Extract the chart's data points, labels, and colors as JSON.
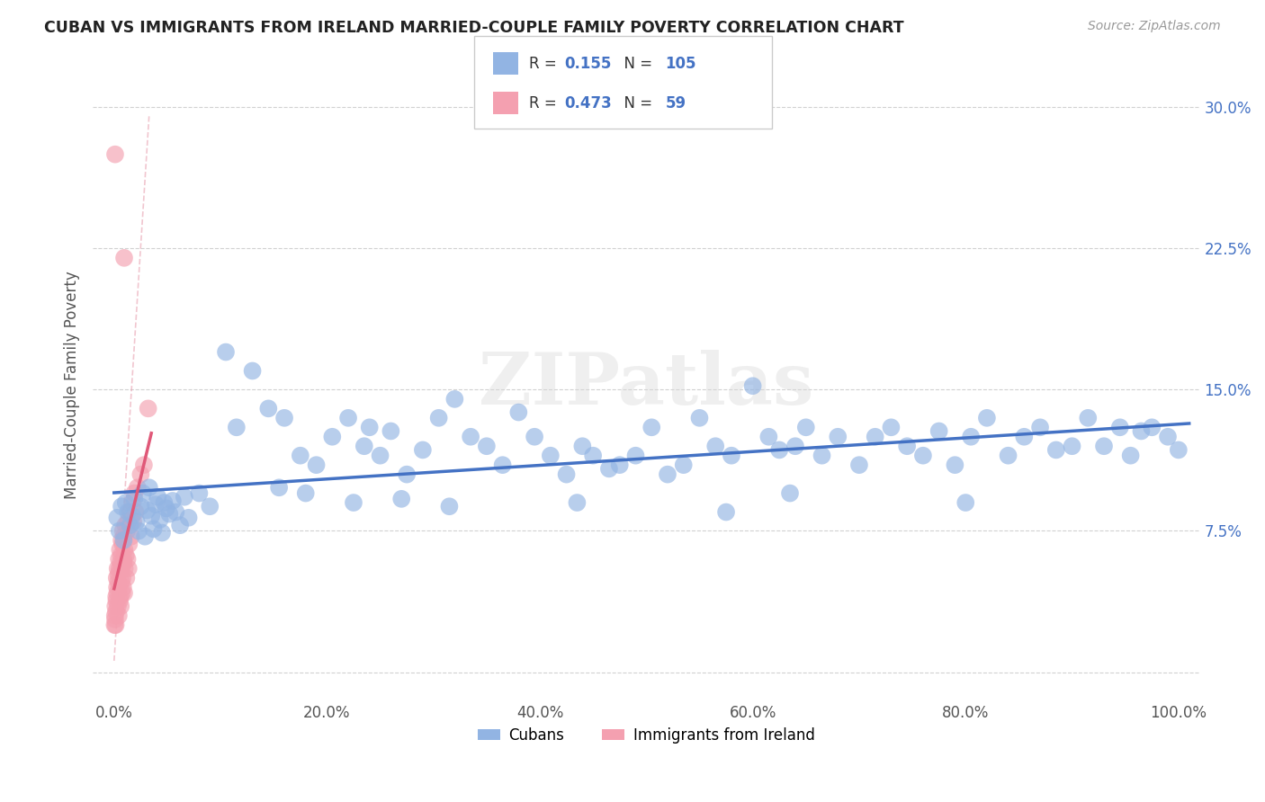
{
  "title": "CUBAN VS IMMIGRANTS FROM IRELAND MARRIED-COUPLE FAMILY POVERTY CORRELATION CHART",
  "source": "Source: ZipAtlas.com",
  "ylabel": "Married-Couple Family Poverty",
  "xlim": [
    -2,
    102
  ],
  "ylim": [
    -1.5,
    32
  ],
  "xticks": [
    0,
    20,
    40,
    60,
    80,
    100
  ],
  "xticklabels": [
    "0.0%",
    "20.0%",
    "40.0%",
    "60.0%",
    "80.0%",
    "100.0%"
  ],
  "yticks": [
    0,
    7.5,
    15.0,
    22.5,
    30.0
  ],
  "yticklabels": [
    "",
    "7.5%",
    "15.0%",
    "22.5%",
    "30.0%"
  ],
  "cubans_R": 0.155,
  "cubans_N": 105,
  "ireland_R": 0.473,
  "ireland_N": 59,
  "cubans_color": "#92b4e3",
  "ireland_color": "#f4a0b0",
  "cubans_line_color": "#4472c4",
  "ireland_line_color": "#e05878",
  "legend_cubans": "Cubans",
  "legend_ireland": "Immigrants from Ireland",
  "grid_color": "#cccccc",
  "background_color": "#ffffff",
  "cubans_x": [
    0.3,
    0.5,
    0.7,
    0.9,
    1.1,
    1.3,
    1.5,
    1.7,
    1.9,
    2.1,
    2.3,
    2.5,
    2.7,
    2.9,
    3.1,
    3.3,
    3.5,
    3.7,
    3.9,
    4.1,
    4.3,
    4.5,
    4.7,
    4.9,
    5.2,
    5.5,
    5.8,
    6.2,
    6.6,
    7.0,
    8.0,
    9.0,
    10.5,
    11.5,
    13.0,
    14.5,
    16.0,
    17.5,
    19.0,
    20.5,
    22.0,
    23.5,
    24.0,
    25.0,
    26.0,
    27.5,
    29.0,
    30.5,
    32.0,
    33.5,
    35.0,
    36.5,
    38.0,
    39.5,
    41.0,
    42.5,
    44.0,
    45.0,
    46.5,
    47.5,
    49.0,
    50.5,
    52.0,
    53.5,
    55.0,
    56.5,
    58.0,
    60.0,
    61.5,
    62.5,
    64.0,
    65.0,
    66.5,
    68.0,
    70.0,
    71.5,
    73.0,
    74.5,
    76.0,
    77.5,
    79.0,
    80.5,
    82.0,
    84.0,
    85.5,
    87.0,
    88.5,
    90.0,
    91.5,
    93.0,
    94.5,
    95.5,
    96.5,
    97.5,
    99.0,
    100.0,
    15.5,
    18.0,
    22.5,
    27.0,
    31.5,
    43.5,
    57.5,
    63.5,
    80.0
  ],
  "cubans_y": [
    8.2,
    7.5,
    8.8,
    7.0,
    9.0,
    8.5,
    7.8,
    8.3,
    9.2,
    8.0,
    7.5,
    8.8,
    9.5,
    7.2,
    8.6,
    9.8,
    8.3,
    7.6,
    8.9,
    9.3,
    8.1,
    7.4,
    9.0,
    8.7,
    8.4,
    9.1,
    8.5,
    7.8,
    9.3,
    8.2,
    9.5,
    8.8,
    17.0,
    13.0,
    16.0,
    14.0,
    13.5,
    11.5,
    11.0,
    12.5,
    13.5,
    12.0,
    13.0,
    11.5,
    12.8,
    10.5,
    11.8,
    13.5,
    14.5,
    12.5,
    12.0,
    11.0,
    13.8,
    12.5,
    11.5,
    10.5,
    12.0,
    11.5,
    10.8,
    11.0,
    11.5,
    13.0,
    10.5,
    11.0,
    13.5,
    12.0,
    11.5,
    15.2,
    12.5,
    11.8,
    12.0,
    13.0,
    11.5,
    12.5,
    11.0,
    12.5,
    13.0,
    12.0,
    11.5,
    12.8,
    11.0,
    12.5,
    13.5,
    11.5,
    12.5,
    13.0,
    11.8,
    12.0,
    13.5,
    12.0,
    13.0,
    11.5,
    12.8,
    13.0,
    12.5,
    11.8,
    9.8,
    9.5,
    9.0,
    9.2,
    8.8,
    9.0,
    8.5,
    9.5,
    9.0
  ],
  "ireland_x": [
    0.05,
    0.08,
    0.1,
    0.12,
    0.15,
    0.18,
    0.2,
    0.22,
    0.25,
    0.28,
    0.3,
    0.33,
    0.35,
    0.38,
    0.4,
    0.43,
    0.45,
    0.48,
    0.5,
    0.53,
    0.55,
    0.58,
    0.6,
    0.63,
    0.65,
    0.68,
    0.7,
    0.73,
    0.75,
    0.78,
    0.8,
    0.83,
    0.85,
    0.88,
    0.9,
    0.93,
    0.95,
    0.98,
    1.0,
    1.05,
    1.1,
    1.15,
    1.2,
    1.25,
    1.3,
    1.35,
    1.4,
    1.5,
    1.6,
    1.7,
    1.8,
    1.9,
    2.0,
    2.2,
    2.5,
    2.8,
    3.2,
    0.1,
    0.95
  ],
  "ireland_y": [
    2.5,
    3.0,
    2.8,
    3.5,
    2.5,
    3.2,
    4.0,
    3.8,
    5.0,
    4.5,
    4.2,
    5.5,
    3.5,
    4.8,
    5.2,
    3.0,
    6.0,
    4.5,
    5.5,
    3.8,
    6.5,
    4.0,
    5.8,
    3.5,
    6.2,
    4.8,
    7.0,
    5.5,
    4.2,
    6.8,
    5.0,
    7.5,
    4.5,
    6.0,
    5.8,
    7.2,
    4.2,
    6.5,
    5.5,
    7.8,
    6.2,
    5.0,
    7.5,
    6.0,
    8.0,
    5.5,
    6.8,
    8.5,
    7.2,
    9.0,
    8.0,
    9.5,
    8.5,
    9.8,
    10.5,
    11.0,
    14.0,
    27.5,
    22.0
  ]
}
